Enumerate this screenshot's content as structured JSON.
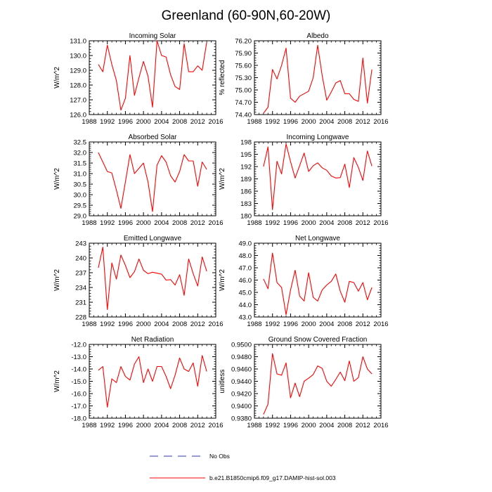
{
  "figure": {
    "title": "Greenland (60-90N,60-20W)",
    "legend": [
      {
        "label": "No Obs",
        "color": "#3333aa",
        "style": "dashed"
      },
      {
        "label": "b.e21.B1850cmip6.f09_g17.DAMIP-hist-sol.003",
        "color": "#ff0000",
        "style": "solid"
      }
    ]
  },
  "chart_data": [
    {
      "type": "line",
      "title": "Incoming Solar",
      "xlabel": "",
      "ylabel": "W/m^2",
      "xlim": [
        1988,
        2016
      ],
      "xticks": [
        1988,
        1992,
        1996,
        2000,
        2004,
        2008,
        2012,
        2016
      ],
      "ylim": [
        126,
        131
      ],
      "yticks": [
        "126.0",
        "127.0",
        "128.0",
        "129.0",
        "130.0",
        "131.0"
      ],
      "grid": false,
      "series": [
        {
          "color": "#ff0000",
          "x": [
            1990,
            1991,
            1992,
            1993,
            1994,
            1995,
            1996,
            1997,
            1998,
            1999,
            2000,
            2001,
            2002,
            2003,
            2004,
            2005,
            2006,
            2007,
            2008,
            2009,
            2010,
            2011,
            2012,
            2013,
            2014
          ],
          "y": [
            129.4,
            128.9,
            130.7,
            129.4,
            128.3,
            126.3,
            127.1,
            130.0,
            127.3,
            128.5,
            129.6,
            128.6,
            126.5,
            131.0,
            130.0,
            129.9,
            128.7,
            127.9,
            127.7,
            130.8,
            128.9,
            128.9,
            129.3,
            129.0,
            130.9
          ]
        }
      ]
    },
    {
      "type": "line",
      "title": "Albedo",
      "xlabel": "",
      "ylabel": "% reflected",
      "xlim": [
        1988,
        2016
      ],
      "xticks": [
        1988,
        1992,
        1996,
        2000,
        2004,
        2008,
        2012,
        2016
      ],
      "ylim": [
        74.4,
        76.2
      ],
      "yticks": [
        "74.40",
        "74.70",
        "75.00",
        "75.30",
        "75.60",
        "75.90",
        "76.20"
      ],
      "grid": false,
      "series": [
        {
          "color": "#ff0000",
          "x": [
            1990,
            1991,
            1992,
            1993,
            1994,
            1995,
            1996,
            1997,
            1998,
            1999,
            2000,
            2001,
            2002,
            2003,
            2004,
            2005,
            2006,
            2007,
            2008,
            2009,
            2010,
            2011,
            2012,
            2013,
            2014
          ],
          "y": [
            74.43,
            74.58,
            75.5,
            75.27,
            75.6,
            76.02,
            74.8,
            74.7,
            74.85,
            74.91,
            74.97,
            75.3,
            76.09,
            75.35,
            74.75,
            74.95,
            75.17,
            75.23,
            74.91,
            74.91,
            74.77,
            74.72,
            75.78,
            74.68,
            75.5
          ]
        }
      ]
    },
    {
      "type": "line",
      "title": "Absorbed Solar",
      "xlabel": "",
      "ylabel": "W/m^2",
      "xlim": [
        1988,
        2016
      ],
      "xticks": [
        1988,
        1992,
        1996,
        2000,
        2004,
        2008,
        2012,
        2016
      ],
      "ylim": [
        29,
        32.5
      ],
      "yticks": [
        "29.0",
        "29.5",
        "30.0",
        "30.5",
        "31.0",
        "31.5",
        "32.0",
        "32.5"
      ],
      "grid": false,
      "series": [
        {
          "color": "#ff0000",
          "x": [
            1990,
            1991,
            1992,
            1993,
            1994,
            1995,
            1996,
            1997,
            1998,
            1999,
            2000,
            2001,
            2002,
            2003,
            2004,
            2005,
            2006,
            2007,
            2008,
            2009,
            2010,
            2011,
            2012,
            2013,
            2014
          ],
          "y": [
            32.0,
            31.55,
            31.1,
            31.03,
            30.22,
            29.35,
            30.6,
            31.9,
            31.0,
            31.25,
            31.5,
            30.6,
            29.2,
            31.4,
            31.85,
            31.55,
            30.9,
            30.6,
            31.1,
            31.9,
            31.6,
            31.6,
            30.4,
            31.55,
            31.2
          ]
        }
      ]
    },
    {
      "type": "line",
      "title": "Incoming Longwave",
      "xlabel": "",
      "ylabel": "W/m^2",
      "xlim": [
        1988,
        2016
      ],
      "xticks": [
        1988,
        1992,
        1996,
        2000,
        2004,
        2008,
        2012,
        2016
      ],
      "ylim": [
        180,
        198
      ],
      "yticks": [
        "180",
        "183",
        "186",
        "189",
        "192",
        "195",
        "198"
      ],
      "grid": false,
      "series": [
        {
          "color": "#ff0000",
          "x": [
            1990,
            1991,
            1992,
            1993,
            1994,
            1995,
            1996,
            1997,
            1998,
            1999,
            2000,
            2001,
            2002,
            2003,
            2004,
            2005,
            2006,
            2007,
            2008,
            2009,
            2010,
            2011,
            2012,
            2013,
            2014
          ],
          "y": [
            192.0,
            196.8,
            181.5,
            193.3,
            190.2,
            197.5,
            193.2,
            189.2,
            192.2,
            195.3,
            190.8,
            192.2,
            192.9,
            191.7,
            191.1,
            189.7,
            189.2,
            189.3,
            192.6,
            186.9,
            194.2,
            191.8,
            188.6,
            195.8,
            192.1
          ]
        }
      ]
    },
    {
      "type": "line",
      "title": "Emitted Longwave",
      "xlabel": "",
      "ylabel": "W/m^2",
      "xlim": [
        1988,
        2016
      ],
      "xticks": [
        1988,
        1992,
        1996,
        2000,
        2004,
        2008,
        2012,
        2016
      ],
      "ylim": [
        228,
        243
      ],
      "yticks": [
        "228",
        "231",
        "234",
        "237",
        "240",
        "243"
      ],
      "grid": false,
      "series": [
        {
          "color": "#ff0000",
          "x": [
            1990,
            1991,
            1992,
            1993,
            1994,
            1995,
            1996,
            1997,
            1998,
            1999,
            2000,
            2001,
            2002,
            2003,
            2004,
            2005,
            2006,
            2007,
            2008,
            2009,
            2010,
            2011,
            2012,
            2013,
            2014
          ],
          "y": [
            238.0,
            242.2,
            229.5,
            239.0,
            235.7,
            240.6,
            238.5,
            236.0,
            237.2,
            239.8,
            237.5,
            236.8,
            237.1,
            236.9,
            236.7,
            235.5,
            235.6,
            234.5,
            236.6,
            232.4,
            239.8,
            236.8,
            234.3,
            240.2,
            237.3
          ]
        }
      ]
    },
    {
      "type": "line",
      "title": "Net Longwave",
      "xlabel": "",
      "ylabel": "W/m^2",
      "xlim": [
        1988,
        2016
      ],
      "xticks": [
        1988,
        1992,
        1996,
        2000,
        2004,
        2008,
        2012,
        2016
      ],
      "ylim": [
        43,
        49
      ],
      "yticks": [
        "43.0",
        "44.0",
        "45.0",
        "46.0",
        "47.0",
        "48.0",
        "49.0"
      ],
      "grid": false,
      "series": [
        {
          "color": "#ff0000",
          "x": [
            1990,
            1991,
            1992,
            1993,
            1994,
            1995,
            1996,
            1997,
            1998,
            1999,
            2000,
            2001,
            2002,
            2003,
            2004,
            2005,
            2006,
            2007,
            2008,
            2009,
            2010,
            2011,
            2012,
            2013,
            2014
          ],
          "y": [
            46.1,
            45.3,
            48.2,
            45.8,
            45.4,
            43.2,
            45.2,
            46.8,
            44.7,
            44.3,
            46.6,
            44.6,
            44.3,
            45.2,
            45.6,
            45.9,
            46.5,
            45.1,
            44.2,
            45.9,
            45.8,
            45.1,
            45.8,
            44.4,
            45.4
          ]
        }
      ]
    },
    {
      "type": "line",
      "title": "Net Radiation",
      "xlabel": "",
      "ylabel": "W/m^2",
      "xlim": [
        1988,
        2016
      ],
      "xticks": [
        1988,
        1992,
        1996,
        2000,
        2004,
        2008,
        2012,
        2016
      ],
      "ylim": [
        -18,
        -12
      ],
      "yticks": [
        "-18.0",
        "-17.0",
        "-16.0",
        "-15.0",
        "-14.0",
        "-13.0",
        "-12.0"
      ],
      "grid": false,
      "series": [
        {
          "color": "#ff0000",
          "x": [
            1990,
            1991,
            1992,
            1993,
            1994,
            1995,
            1996,
            1997,
            1998,
            1999,
            2000,
            2001,
            2002,
            2003,
            2004,
            2005,
            2006,
            2007,
            2008,
            2009,
            2010,
            2011,
            2012,
            2013,
            2014
          ],
          "y": [
            -14.1,
            -13.8,
            -17.1,
            -14.8,
            -15.1,
            -13.8,
            -14.6,
            -14.9,
            -13.6,
            -13.0,
            -15.1,
            -14.0,
            -15.0,
            -13.8,
            -13.8,
            -14.6,
            -15.6,
            -14.5,
            -13.1,
            -14.0,
            -14.2,
            -13.5,
            -15.4,
            -12.9,
            -14.2
          ]
        }
      ]
    },
    {
      "type": "line",
      "title": "Ground Snow Covered Fraction",
      "xlabel": "",
      "ylabel": "unitless",
      "xlim": [
        1988,
        2016
      ],
      "xticks": [
        1988,
        1992,
        1996,
        2000,
        2004,
        2008,
        2012,
        2016
      ],
      "ylim": [
        0.938,
        0.95
      ],
      "yticks": [
        "0.9380",
        "0.9400",
        "0.9420",
        "0.9440",
        "0.9460",
        "0.9480",
        "0.9500"
      ],
      "grid": false,
      "series": [
        {
          "color": "#ff0000",
          "x": [
            1990,
            1991,
            1992,
            1993,
            1994,
            1995,
            1996,
            1997,
            1998,
            1999,
            2000,
            2001,
            2002,
            2003,
            2004,
            2005,
            2006,
            2007,
            2008,
            2009,
            2010,
            2011,
            2012,
            2013,
            2014
          ],
          "y": [
            0.9386,
            0.9403,
            0.9485,
            0.9452,
            0.945,
            0.947,
            0.9413,
            0.9437,
            0.9415,
            0.944,
            0.9445,
            0.9451,
            0.9465,
            0.9461,
            0.944,
            0.9432,
            0.9443,
            0.9455,
            0.9441,
            0.9473,
            0.944,
            0.9446,
            0.948,
            0.946,
            0.9452
          ]
        }
      ]
    }
  ]
}
